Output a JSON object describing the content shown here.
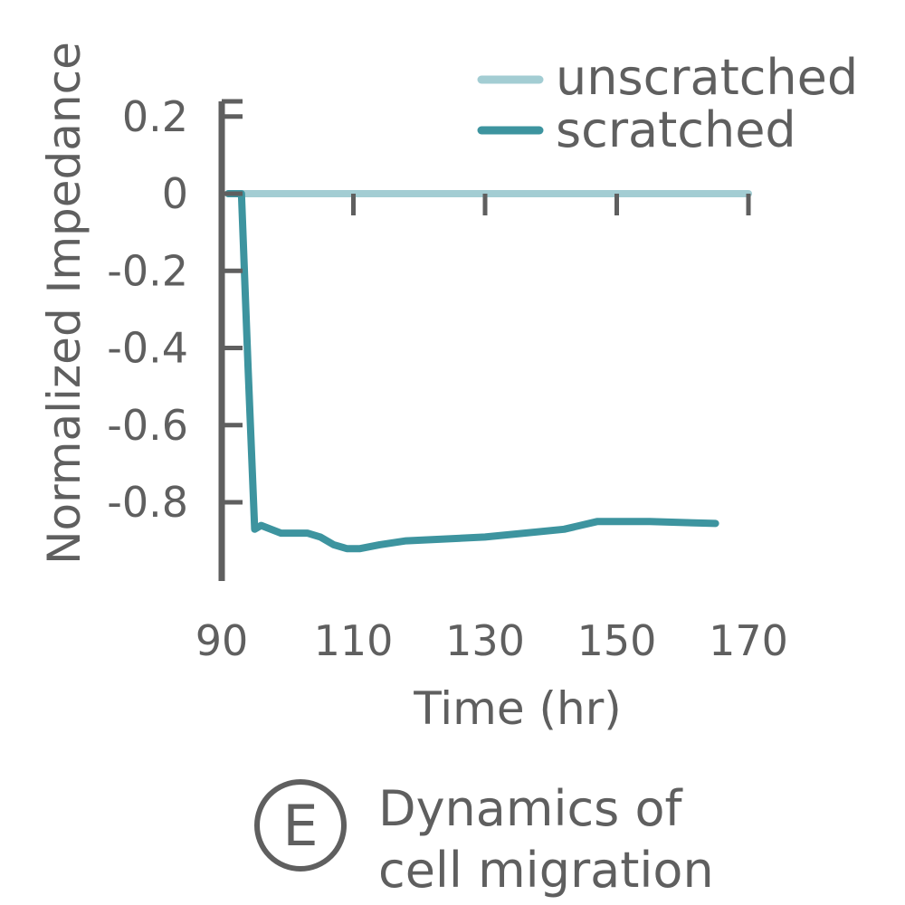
{
  "chart_data": {
    "type": "line",
    "xlabel": "Time (hr)",
    "ylabel": "Normalized Impedance",
    "xlim": [
      90,
      170
    ],
    "ylim": [
      -0.97,
      0.24
    ],
    "x_ticks": [
      90,
      110,
      130,
      150,
      170
    ],
    "y_ticks": [
      0.2,
      0,
      -0.2,
      -0.4,
      -0.6,
      -0.8
    ],
    "grid": false,
    "legend_position": "top-right",
    "series": [
      {
        "name": "unscratched",
        "color": "#a3cdd3",
        "x": [
          91,
          170
        ],
        "y": [
          0,
          0
        ]
      },
      {
        "name": "scratched",
        "color": "#3d949f",
        "x": [
          91,
          93,
          94,
          95,
          96,
          99,
          103,
          105,
          107,
          109,
          111,
          114,
          118,
          130,
          142,
          147,
          155,
          165
        ],
        "y": [
          0,
          0,
          -0.45,
          -0.87,
          -0.86,
          -0.88,
          -0.88,
          -0.89,
          -0.91,
          -0.92,
          -0.92,
          -0.91,
          -0.9,
          -0.89,
          -0.87,
          -0.85,
          -0.85,
          -0.855
        ]
      }
    ]
  },
  "legend": {
    "unscratched": "unscratched",
    "scratched": "scratched"
  },
  "caption": {
    "badge_letter": "E",
    "line1": "Dynamics of",
    "line2": "cell migration"
  }
}
